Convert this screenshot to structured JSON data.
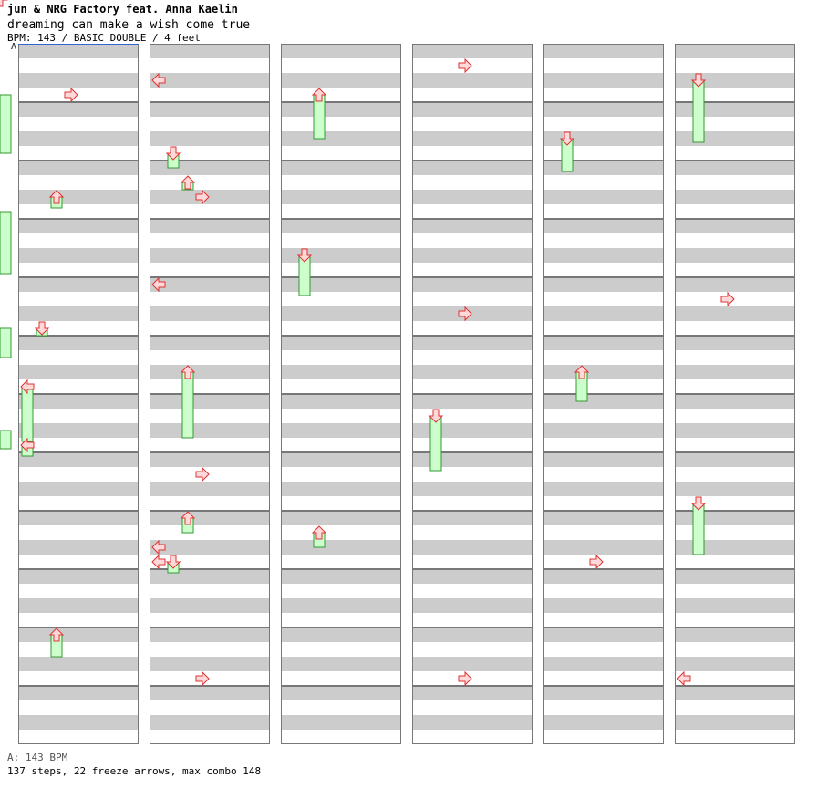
{
  "header": {
    "artist": "jun & NRG Factory feat. Anna Kaelin",
    "title": "dreaming can make a wish come true",
    "meta": "BPM: 143 / BASIC DOUBLE / 4 feet"
  },
  "speed_marker": "A",
  "footer": {
    "speed_line": "A: 143 BPM",
    "stats_line": "137 steps, 22 freeze arrows, max combo 148"
  },
  "colors": {
    "stripe": "#cccccc",
    "border": "#777777",
    "arrow_fill": "#ffd9d9",
    "arrow_stroke": "#dd3333",
    "freeze_fill": "#ccffcc",
    "freeze_stroke": "#339933",
    "speed_line": "#3366cc"
  },
  "chart_data": {
    "type": "table",
    "style": "double",
    "columns_of_measures": 6,
    "measures_per_column": 12,
    "lanes": [
      "P1-left",
      "P1-down",
      "P1-up",
      "P1-right",
      "P2-left",
      "P2-down",
      "P2-up",
      "P2-right"
    ],
    "arrows": [
      [
        0,
        "right",
        3
      ],
      [
        0,
        "up",
        7
      ],
      [
        0,
        "down",
        9
      ],
      [
        0,
        "left",
        4
      ],
      [
        1,
        "left",
        4
      ],
      [
        2,
        "up",
        13
      ],
      [
        2,
        "left",
        10
      ],
      [
        3,
        "down",
        5
      ],
      [
        4,
        "up",
        2
      ],
      [
        5,
        "right",
        1
      ],
      [
        6,
        "left",
        6
      ],
      [
        7,
        "up",
        6
      ],
      [
        8,
        "right",
        7
      ],
      [
        8,
        "up",
        3
      ],
      [
        8,
        "left",
        2
      ],
      [
        9,
        "down",
        1
      ],
      [
        9,
        "left",
        0
      ],
      [
        10,
        "right",
        8
      ],
      [
        10,
        "up",
        8
      ],
      [
        10,
        "down",
        11
      ],
      [
        12,
        "up",
        19
      ],
      [
        12,
        "right",
        16
      ],
      [
        13,
        "right",
        17
      ],
      [
        14,
        "down",
        7
      ],
      [
        14,
        "right",
        18
      ],
      [
        15,
        "down",
        11
      ],
      [
        16,
        "up",
        16
      ],
      [
        16,
        "right",
        13
      ],
      [
        17,
        "down",
        15
      ],
      [
        18,
        "right",
        15
      ],
      [
        19,
        "down",
        14
      ],
      [
        20,
        "left",
        12
      ],
      [
        21,
        "up",
        16
      ],
      [
        22,
        "down",
        9
      ],
      [
        23,
        "left",
        14
      ],
      [
        24,
        "down",
        15
      ],
      [
        25,
        "left",
        6
      ],
      [
        26,
        "right",
        14
      ],
      [
        27,
        "left",
        18
      ],
      [
        28,
        "right",
        12
      ],
      [
        29,
        "up",
        16
      ],
      [
        30,
        "down",
        9
      ],
      [
        31,
        "right",
        0
      ],
      [
        32,
        "right",
        9
      ],
      [
        33,
        "left",
        3
      ],
      [
        34,
        "left",
        5
      ],
      [
        35,
        "right",
        1
      ],
      [
        36,
        "up",
        5
      ],
      [
        37,
        "left",
        0
      ],
      [
        38,
        "left",
        10
      ],
      [
        39,
        "down",
        2
      ],
      [
        40,
        "up",
        11
      ],
      [
        41,
        "down",
        3
      ],
      [
        42,
        "up",
        17
      ],
      [
        43,
        "right",
        4
      ],
      [
        44,
        "up",
        12
      ],
      [
        45,
        "down",
        4
      ],
      [
        46,
        "right",
        13
      ],
      [
        47,
        "left",
        14
      ],
      [
        48,
        "up",
        14
      ],
      [
        49,
        "right",
        7
      ],
      [
        50,
        "down",
        2
      ],
      [
        51,
        "left",
        14
      ],
      [
        52,
        "right",
        11
      ],
      [
        53,
        "left",
        15
      ],
      [
        54,
        "left",
        6
      ],
      [
        55,
        "down",
        4
      ],
      [
        56,
        "up",
        12
      ],
      [
        57,
        "right",
        8
      ],
      [
        58,
        "left",
        3
      ],
      [
        59,
        "down",
        10
      ],
      [
        60,
        "right",
        9
      ],
      [
        61,
        "up",
        13
      ],
      [
        62,
        "left",
        4
      ],
      [
        63,
        "right",
        7
      ],
      [
        64,
        "up",
        3
      ],
      [
        65,
        "left",
        8
      ],
      [
        66,
        "right",
        19
      ],
      [
        67,
        "up",
        16
      ],
      [
        68,
        "right",
        10
      ],
      [
        69,
        "left",
        9
      ],
      [
        70,
        "down",
        12
      ],
      [
        71,
        "down",
        0
      ],
      [
        72,
        "left",
        1
      ],
      [
        73,
        "left",
        14
      ],
      [
        74,
        "right",
        10
      ],
      [
        75,
        "up",
        13
      ],
      [
        76,
        "down",
        10
      ],
      [
        77,
        "up",
        12
      ],
      [
        78,
        "left",
        0
      ],
      [
        79,
        "right",
        18
      ],
      [
        80,
        "down",
        4
      ],
      [
        81,
        "right",
        5
      ],
      [
        82,
        "down",
        14
      ],
      [
        83,
        "left",
        10
      ],
      [
        84,
        "right",
        7
      ],
      [
        85,
        "up",
        7
      ],
      [
        86,
        "right",
        12
      ],
      [
        87,
        "left",
        13
      ],
      [
        88,
        "right",
        9
      ],
      [
        89,
        "down",
        5
      ],
      [
        90,
        "left",
        1
      ],
      [
        91,
        "down",
        13
      ],
      [
        92,
        "up",
        5
      ],
      [
        93,
        "right",
        11
      ],
      [
        94,
        "up",
        14
      ],
      [
        95,
        "left",
        15
      ],
      [
        96,
        "up",
        14
      ],
      [
        97,
        "right",
        11
      ],
      [
        98,
        "down",
        6
      ],
      [
        99,
        "up",
        17
      ],
      [
        100,
        "left",
        9
      ],
      [
        101,
        "down",
        13
      ],
      [
        102,
        "up",
        2
      ],
      [
        103,
        "left",
        16
      ],
      [
        104,
        "down",
        19
      ],
      [
        105,
        "right",
        8
      ],
      [
        106,
        "left",
        10
      ],
      [
        107,
        "down",
        9
      ],
      [
        108,
        "right",
        7
      ],
      [
        109,
        "left",
        3
      ],
      [
        110,
        "down",
        1
      ],
      [
        111,
        "left",
        6
      ],
      [
        112,
        "up",
        16
      ],
      [
        113,
        "right",
        15
      ],
      [
        114,
        "up",
        14
      ],
      [
        115,
        "right",
        1
      ],
      [
        116,
        "up",
        13
      ],
      [
        117,
        "left",
        10
      ],
      [
        118,
        "right",
        16
      ],
      [
        119,
        "down",
        9
      ],
      [
        120,
        "left",
        2
      ],
      [
        121,
        "down",
        10
      ],
      [
        122,
        "right",
        14
      ],
      [
        123,
        "up",
        16
      ],
      [
        124,
        "right",
        15
      ],
      [
        125,
        "left",
        17
      ],
      [
        126,
        "down",
        3
      ],
      [
        127,
        "right",
        9
      ],
      [
        128,
        "left",
        6
      ],
      [
        129,
        "up",
        2
      ],
      [
        130,
        "right",
        17
      ],
      [
        131,
        "left",
        16
      ],
      [
        132,
        "up",
        11
      ],
      [
        133,
        "down",
        4
      ],
      [
        134,
        "left",
        8
      ],
      [
        135,
        "down",
        5
      ],
      [
        136,
        "left",
        15
      ]
    ],
    "freezes": [
      [
        "up",
        3
      ],
      [
        "down",
        2
      ],
      [
        "left",
        15
      ],
      [
        "up",
        6
      ],
      [
        "down",
        4
      ],
      [
        "up",
        2
      ],
      [
        "up",
        18
      ],
      [
        "down",
        3
      ],
      [
        "up",
        4
      ],
      [
        "down",
        11
      ],
      [
        "down",
        15
      ],
      [
        "up",
        12
      ],
      [
        "left",
        3
      ],
      [
        "up",
        4
      ],
      [
        "down",
        9
      ],
      [
        "down",
        17
      ],
      [
        "up",
        8
      ],
      [
        "up",
        17
      ],
      [
        "up",
        8
      ],
      [
        "up",
        16
      ],
      [
        "down",
        14
      ],
      [
        "up",
        5
      ]
    ]
  }
}
